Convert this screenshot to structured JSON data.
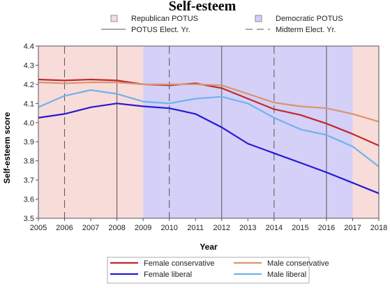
{
  "chart_data": {
    "type": "line",
    "title": "Self-esteem",
    "xlabel": "Year",
    "ylabel": "Self-esteem score",
    "x": [
      2005,
      2006,
      2007,
      2008,
      2009,
      2010,
      2011,
      2012,
      2013,
      2014,
      2015,
      2016,
      2017,
      2018
    ],
    "xlim": [
      2005,
      2018
    ],
    "ylim": [
      3.5,
      4.4
    ],
    "yticks": [
      3.5,
      3.6,
      3.7,
      3.8,
      3.9,
      4.0,
      4.1,
      4.2,
      4.3,
      4.4
    ],
    "ytick_labels": [
      "3.5",
      "3.6",
      "3.7",
      "3.8",
      "3.9",
      "4.0",
      "4.1",
      "4.2",
      "4.3",
      "4.4"
    ],
    "xtick_labels": [
      "2005",
      "2006",
      "2007",
      "2008",
      "2009",
      "2010",
      "2011",
      "2012",
      "2013",
      "2014",
      "2015",
      "2016",
      "2017",
      "2018"
    ],
    "series": [
      {
        "name": "Female conservative",
        "color": "#c0282d",
        "values": [
          4.225,
          4.22,
          4.225,
          4.22,
          4.2,
          4.195,
          4.205,
          4.18,
          4.125,
          4.07,
          4.04,
          3.995,
          3.94,
          3.88
        ]
      },
      {
        "name": "Male conservative",
        "color": "#d9956f",
        "values": [
          4.21,
          4.205,
          4.21,
          4.21,
          4.2,
          4.2,
          4.2,
          4.195,
          4.15,
          4.105,
          4.085,
          4.075,
          4.045,
          4.005
        ]
      },
      {
        "name": "Female liberal",
        "color": "#2419d6",
        "values": [
          4.025,
          4.045,
          4.08,
          4.1,
          4.085,
          4.075,
          4.045,
          3.975,
          3.89,
          3.84,
          3.79,
          3.74,
          3.685,
          3.63
        ]
      },
      {
        "name": "Male liberal",
        "color": "#6fb2ee",
        "values": [
          4.08,
          4.14,
          4.17,
          4.15,
          4.11,
          4.1,
          4.125,
          4.135,
          4.1,
          4.025,
          3.965,
          3.935,
          3.875,
          3.77
        ]
      }
    ],
    "background_periods": [
      {
        "party": "Republican",
        "from": 2005,
        "to": 2009,
        "color": "#f8dcd9"
      },
      {
        "party": "Democratic",
        "from": 2009,
        "to": 2017,
        "color": "#d4d0f7"
      },
      {
        "party": "Republican",
        "from": 2017,
        "to": 2018,
        "color": "#f8dcd9"
      }
    ],
    "election_lines": [
      {
        "year": 2005,
        "kind": "potus"
      },
      {
        "year": 2006,
        "kind": "midterm"
      },
      {
        "year": 2008,
        "kind": "potus"
      },
      {
        "year": 2010,
        "kind": "midterm"
      },
      {
        "year": 2012,
        "kind": "potus"
      },
      {
        "year": 2014,
        "kind": "midterm"
      },
      {
        "year": 2016,
        "kind": "potus"
      },
      {
        "year": 2018,
        "kind": "midterm"
      }
    ],
    "top_legend": [
      {
        "label": "Republican POTUS",
        "kind": "swatch",
        "color": "#f8dcd9"
      },
      {
        "label": "Democratic POTUS",
        "kind": "swatch",
        "color": "#d4d0f7"
      },
      {
        "label": "POTUS Elect. Yr.",
        "kind": "solid-line"
      },
      {
        "label": "Midterm Elect. Yr.",
        "kind": "dashed-line"
      }
    ],
    "legend_placement": "bottom",
    "grid": false
  }
}
